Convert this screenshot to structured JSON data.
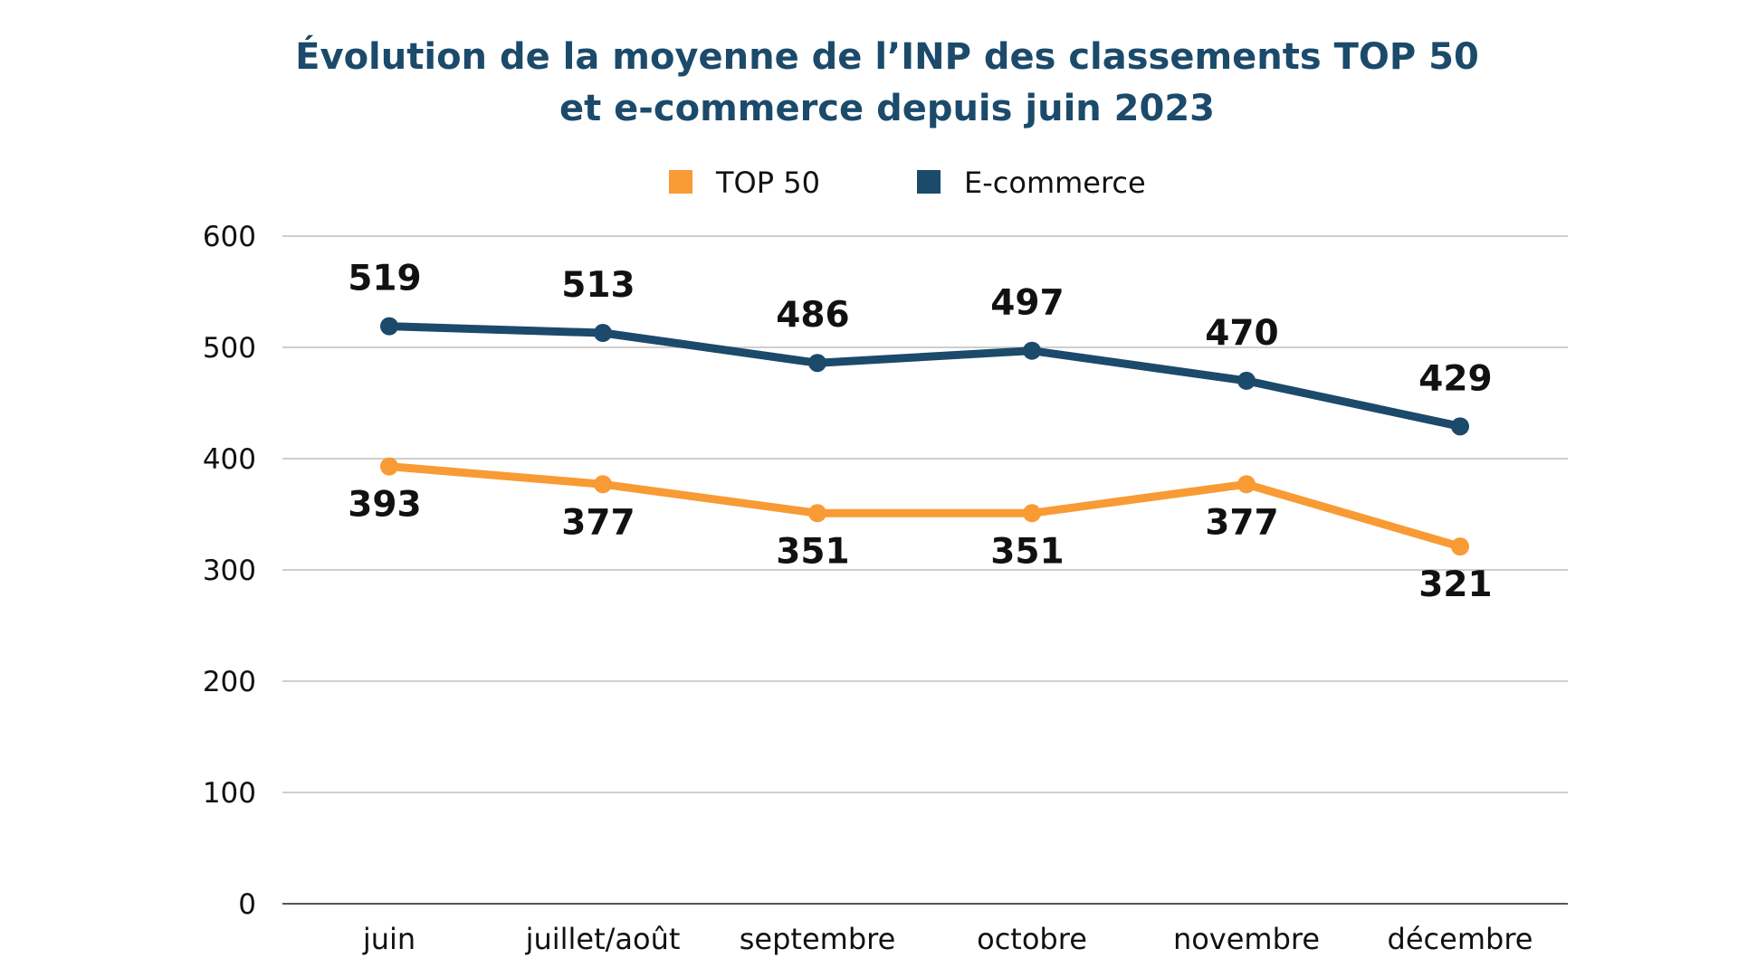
{
  "chart_data": {
    "type": "line",
    "title": "Évolution de la moyenne de l’INP des classements TOP 50",
    "title_line2": "et e-commerce depuis juin 2023",
    "categories": [
      "juin",
      "juillet/août",
      "septembre",
      "octobre",
      "novembre",
      "décembre"
    ],
    "series": [
      {
        "name": "TOP 50",
        "color": "#f89b35",
        "values": [
          393,
          377,
          351,
          351,
          377,
          321
        ]
      },
      {
        "name": "E-commerce",
        "color": "#1b4a6b",
        "values": [
          519,
          513,
          486,
          497,
          470,
          429
        ]
      }
    ],
    "yticks": [
      0,
      100,
      200,
      300,
      400,
      500,
      600
    ],
    "ylim": [
      0,
      600
    ],
    "xlabel": "",
    "ylabel": "",
    "grid": true,
    "legend": "top-center"
  }
}
